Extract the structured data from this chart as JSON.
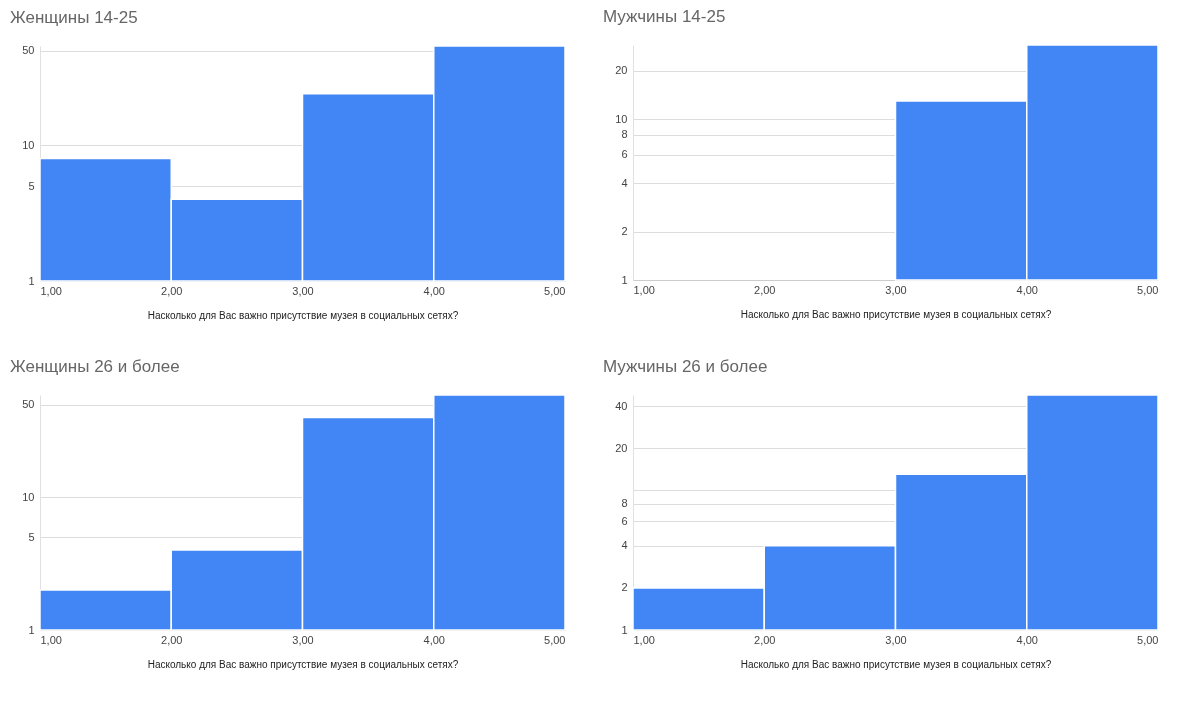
{
  "chart_data": [
    {
      "type": "histogram",
      "title": "Женщины 14-25",
      "xlabel": "Насколько для Вас важно присутствие музея в социальных сетях?",
      "bins": [
        1,
        2,
        3,
        4,
        5
      ],
      "values": [
        8,
        4,
        24,
        54
      ],
      "color": "#4285f4",
      "ylim": [
        1,
        54
      ],
      "xlim": [
        1,
        5
      ],
      "xticks": [
        {
          "value": 1,
          "label": "1,00"
        },
        {
          "value": 2,
          "label": "2,00"
        },
        {
          "value": 3,
          "label": "3,00"
        },
        {
          "value": 4,
          "label": "4,00"
        },
        {
          "value": 5,
          "label": "5,00"
        }
      ],
      "yticks": [
        1,
        5,
        10,
        50
      ],
      "log": true,
      "grid": "y"
    },
    {
      "type": "histogram",
      "title": "Мужчины 14-25",
      "xlabel": "Насколько для Вас важно присутствие музея в социальных сетях?",
      "bins": [
        1,
        2,
        3,
        4,
        5
      ],
      "values": [
        null,
        null,
        13,
        29
      ],
      "color": "#4285f4",
      "ylim": [
        1,
        29
      ],
      "xlim": [
        1,
        5
      ],
      "xticks": [
        {
          "value": 1,
          "label": "1,00"
        },
        {
          "value": 2,
          "label": "2,00"
        },
        {
          "value": 3,
          "label": "3,00"
        },
        {
          "value": 4,
          "label": "4,00"
        },
        {
          "value": 5,
          "label": "5,00"
        }
      ],
      "yticks": [
        1,
        2,
        4,
        6,
        8,
        10,
        20
      ],
      "log": true,
      "grid": "y"
    },
    {
      "type": "histogram",
      "title": "Женщины 26 и более",
      "xlabel": "Насколько для Вас важно присутствие музея в социальных сетях?",
      "bins": [
        1,
        2,
        3,
        4,
        5
      ],
      "values": [
        2,
        4,
        40,
        59
      ],
      "color": "#4285f4",
      "ylim": [
        1,
        59
      ],
      "xlim": [
        1,
        5
      ],
      "xticks": [
        {
          "value": 1,
          "label": "1,00"
        },
        {
          "value": 2,
          "label": "2,00"
        },
        {
          "value": 3,
          "label": "3,00"
        },
        {
          "value": 4,
          "label": "4,00"
        },
        {
          "value": 5,
          "label": "5,00"
        }
      ],
      "yticks": [
        1,
        5,
        10,
        50
      ],
      "log": true,
      "grid": "y"
    },
    {
      "type": "histogram",
      "title": "Мужчины 26 и более",
      "xlabel": "Насколько для Вас важно присутствие музея в социальных сетях?",
      "bins": [
        1,
        2,
        3,
        4,
        5
      ],
      "values": [
        2,
        4,
        13,
        48
      ],
      "color": "#4285f4",
      "ylim": [
        1,
        48
      ],
      "xlim": [
        1,
        5
      ],
      "xticks": [
        {
          "value": 1,
          "label": "1,00"
        },
        {
          "value": 2,
          "label": "2,00"
        },
        {
          "value": 3,
          "label": "3,00"
        },
        {
          "value": 4,
          "label": "4,00"
        },
        {
          "value": 5,
          "label": "5,00"
        }
      ],
      "yticks": [
        1,
        2,
        4,
        6,
        8,
        {
          "value": 10,
          "label": null
        },
        20,
        40
      ],
      "log": true,
      "grid": "y"
    }
  ]
}
